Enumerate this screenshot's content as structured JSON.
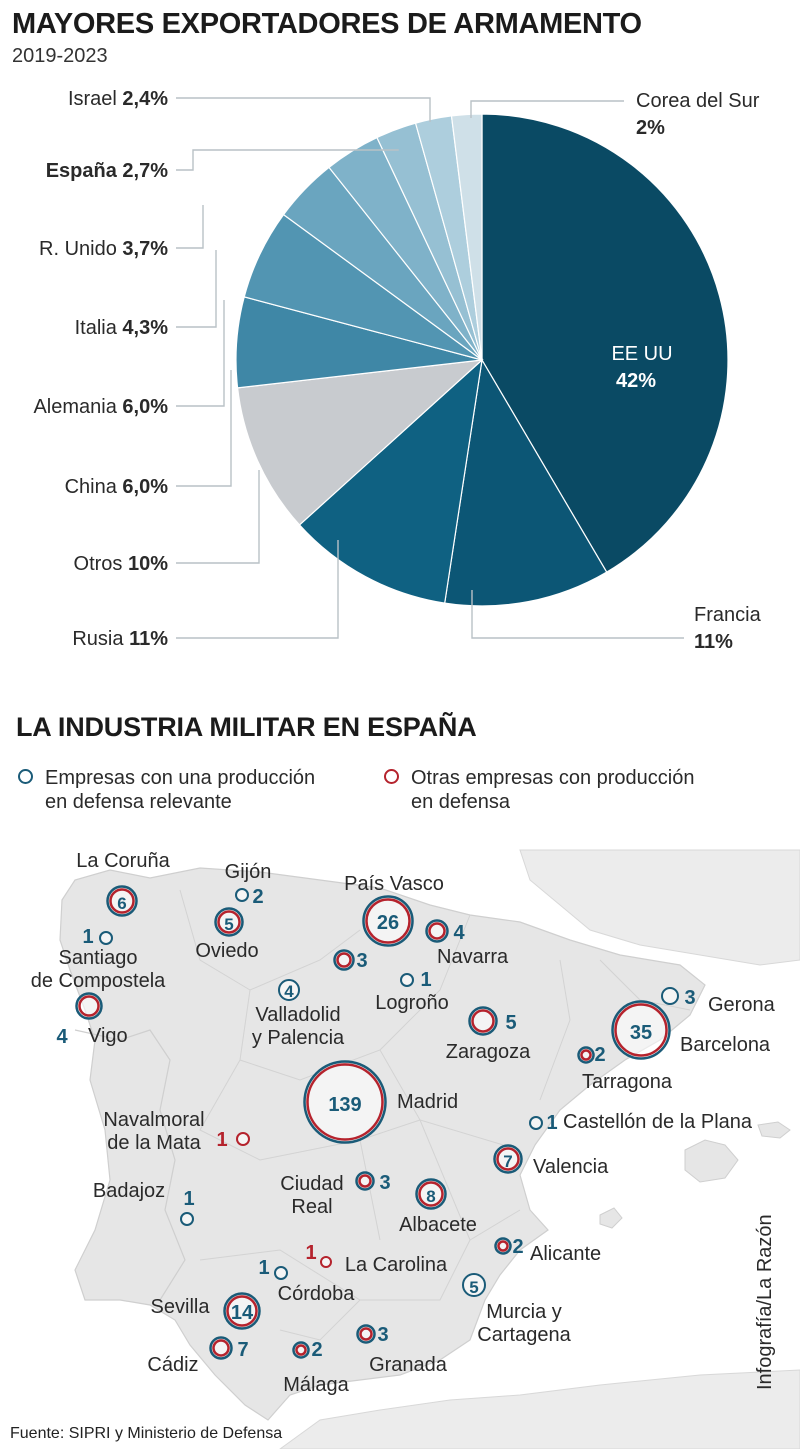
{
  "title": "MAYORES EXPORTADORES DE ARMAMENTO",
  "subtitle": "2019-2023",
  "chart_data": {
    "type": "pie",
    "title": "MAYORES EXPORTADORES DE ARMAMENTO",
    "subtitle": "2019-2023",
    "slices": [
      {
        "name": "EE UU",
        "value": 42,
        "label": "42%",
        "color": "#0a4a64"
      },
      {
        "name": "Francia",
        "value": 11,
        "label": "11%",
        "color": "#0c5675"
      },
      {
        "name": "Rusia",
        "value": 11,
        "label": "11%",
        "color": "#0f6182"
      },
      {
        "name": "Otros",
        "value": 10,
        "label": "10%",
        "color": "#c8cbcf"
      },
      {
        "name": "China",
        "value": 6.0,
        "label": "6,0%",
        "color": "#3f87a6"
      },
      {
        "name": "Alemania",
        "value": 6.0,
        "label": "6,0%",
        "color": "#5295b2"
      },
      {
        "name": "Italia",
        "value": 4.3,
        "label": "4,3%",
        "color": "#6aa5bf"
      },
      {
        "name": "R. Unido",
        "value": 3.7,
        "label": "3,7%",
        "color": "#7fb2c9"
      },
      {
        "name": "España",
        "value": 2.7,
        "label": "2,7%",
        "color": "#96c0d3"
      },
      {
        "name": "Israel",
        "value": 2.4,
        "label": "2,4%",
        "color": "#adcedd"
      },
      {
        "name": "Corea del Sur",
        "value": 2,
        "label": "2%",
        "color": "#cfe0e8"
      }
    ],
    "legend": "none"
  },
  "industry": {
    "title": "LA INDUSTRIA MILITAR EN ESPAÑA",
    "legend": [
      {
        "text": "Empresas con una producción\nen defensa relevante",
        "color": "#1a5b78"
      },
      {
        "text": "Otras empresas con producción\nen defensa",
        "color": "#b5232d"
      }
    ],
    "locations": [
      {
        "name": "La Coruña",
        "count": "6",
        "type": "red"
      },
      {
        "name": "Gijón",
        "count": "2",
        "type": "blue"
      },
      {
        "name": "País Vasco",
        "count": "26",
        "type": "red"
      },
      {
        "name": "Santiago\nde Compostela",
        "count": "1",
        "type": "blue"
      },
      {
        "name": "Oviedo",
        "count": "5",
        "type": "red"
      },
      {
        "name": "",
        "count": "3",
        "type": "red"
      },
      {
        "name": "Navarra",
        "count": "4",
        "type": "red"
      },
      {
        "name": "Logroño",
        "count": "1",
        "type": "blue"
      },
      {
        "name": "Valladolid\ny Palencia",
        "count": "4",
        "type": "blue"
      },
      {
        "name": "Vigo",
        "count": "4",
        "type": "red"
      },
      {
        "name": "Gerona",
        "count": "3",
        "type": "blue"
      },
      {
        "name": "Zaragoza",
        "count": "5",
        "type": "red"
      },
      {
        "name": "Barcelona",
        "count": "35",
        "type": "red"
      },
      {
        "name": "Tarragona",
        "count": "2",
        "type": "red"
      },
      {
        "name": "Madrid",
        "count": "139",
        "type": "red"
      },
      {
        "name": "Navalmoral\nde la Mata",
        "count": "1",
        "type": "redonly"
      },
      {
        "name": "Castellón de la Plana",
        "count": "1",
        "type": "blue"
      },
      {
        "name": "Valencia",
        "count": "7",
        "type": "red"
      },
      {
        "name": "Ciudad\nReal",
        "count": "3",
        "type": "red"
      },
      {
        "name": "Albacete",
        "count": "8",
        "type": "red"
      },
      {
        "name": "Badajoz",
        "count": "1",
        "type": "blue"
      },
      {
        "name": "La Carolina",
        "count": "1",
        "type": "redonly"
      },
      {
        "name": "Alicante",
        "count": "2",
        "type": "red"
      },
      {
        "name": "Córdoba",
        "count": "1",
        "type": "blue"
      },
      {
        "name": "Sevilla",
        "count": "14",
        "type": "red"
      },
      {
        "name": "Murcia y\nCartagena",
        "count": "5",
        "type": "blue"
      },
      {
        "name": "Cádiz",
        "count": "7",
        "type": "red"
      },
      {
        "name": "",
        "count": "2",
        "type": "red"
      },
      {
        "name": "Málaga",
        "count": "",
        "type": "label"
      },
      {
        "name": "Granada",
        "count": "3",
        "type": "red"
      }
    ]
  },
  "credit": "Infografía/La Razón",
  "source": "Fuente: SIPRI y Ministerio de Defensa"
}
